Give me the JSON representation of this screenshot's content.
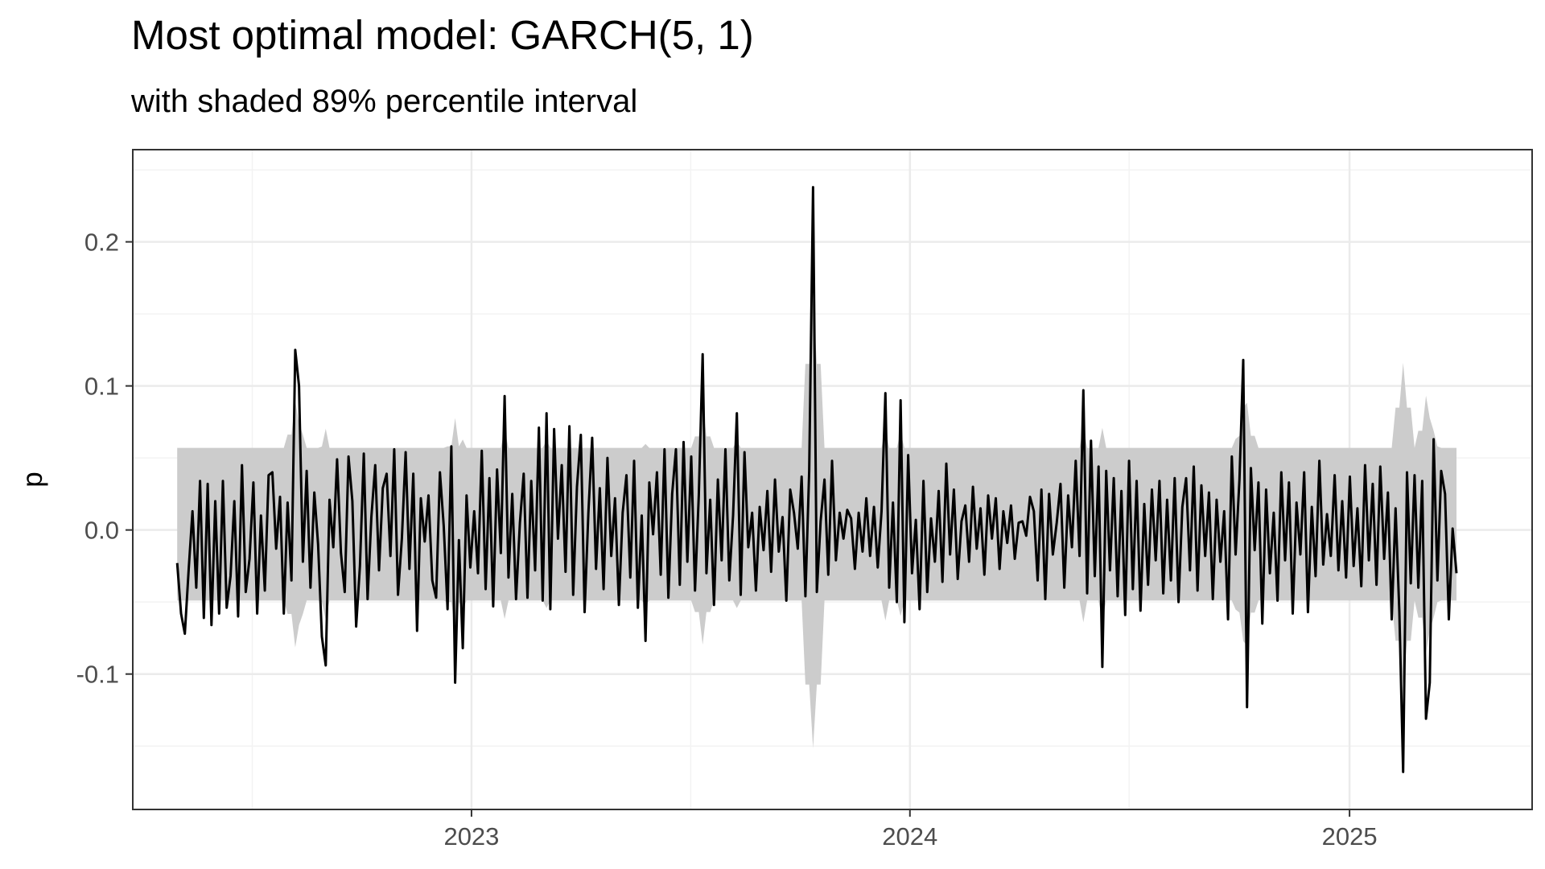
{
  "header": {
    "title": "Most optimal model: GARCH(5, 1)",
    "subtitle": "with shaded 89% percentile interval"
  },
  "colors": {
    "background": "#ffffff",
    "grid_major": "#ebebeb",
    "grid_minor": "#f3f3f3",
    "panel_border": "#333333",
    "ribbon": "#cccccc",
    "line": "#000000"
  },
  "chart_data": {
    "type": "line",
    "title": "Most optimal model: GARCH(5, 1)",
    "subtitle": "with shaded 89% percentile interval",
    "xlabel": "",
    "ylabel": "p",
    "x_type": "date",
    "x_range": [
      "2022-05-01",
      "2025-03-31"
    ],
    "xlim": [
      "2022-03-25",
      "2025-06-02"
    ],
    "ylim": [
      -0.194,
      0.264
    ],
    "x_ticks": [
      "2023",
      "2024",
      "2025"
    ],
    "y_ticks": [
      "-0.1",
      "0.0",
      "0.1",
      "0.2"
    ],
    "y_tick_values": [
      -0.1,
      0.0,
      0.1,
      0.2
    ],
    "grid": true,
    "legend": "none",
    "ribbon_description": "shaded 89% percentile interval",
    "series": [
      {
        "name": "",
        "values": [
          -0.023,
          -0.058,
          -0.072,
          -0.028,
          0.013,
          -0.04,
          0.034,
          -0.061,
          0.032,
          -0.066,
          0.02,
          -0.058,
          0.034,
          -0.054,
          -0.032,
          0.02,
          -0.06,
          0.045,
          -0.043,
          -0.02,
          0.033,
          -0.058,
          0.01,
          -0.042,
          0.038,
          0.04,
          -0.013,
          0.023,
          -0.058,
          0.019,
          -0.035,
          0.125,
          0.1,
          -0.022,
          0.041,
          -0.04,
          0.026,
          -0.01,
          -0.074,
          -0.094,
          0.021,
          -0.012,
          0.049,
          -0.016,
          -0.043,
          0.051,
          0.02,
          -0.067,
          -0.025,
          0.053,
          -0.048,
          0.009,
          0.045,
          -0.028,
          0.029,
          0.039,
          -0.018,
          0.056,
          -0.045,
          -0.006,
          0.054,
          -0.027,
          0.039,
          -0.07,
          0.022,
          -0.008,
          0.024,
          -0.035,
          -0.047,
          0.04,
          0.003,
          -0.055,
          0.058,
          -0.106,
          -0.007,
          -0.082,
          0.024,
          -0.026,
          0.013,
          -0.03,
          0.055,
          -0.041,
          0.036,
          -0.053,
          0.042,
          -0.016,
          0.093,
          -0.033,
          0.025,
          -0.048,
          0.005,
          0.039,
          -0.047,
          0.034,
          -0.028,
          0.071,
          -0.049,
          0.081,
          -0.055,
          0.07,
          -0.006,
          0.045,
          -0.029,
          0.072,
          -0.045,
          0.03,
          0.066,
          -0.057,
          0.012,
          0.064,
          -0.027,
          0.029,
          -0.041,
          0.05,
          -0.018,
          0.022,
          -0.052,
          0.012,
          0.038,
          -0.033,
          0.048,
          -0.054,
          0.01,
          -0.077,
          0.033,
          -0.003,
          0.04,
          -0.031,
          0.056,
          -0.047,
          0.025,
          0.056,
          -0.038,
          0.061,
          -0.022,
          0.051,
          -0.042,
          0.024,
          0.122,
          -0.03,
          0.021,
          -0.052,
          0.035,
          -0.021,
          0.056,
          -0.035,
          0.01,
          0.081,
          -0.045,
          0.054,
          -0.012,
          0.012,
          -0.042,
          0.016,
          -0.014,
          0.027,
          -0.029,
          0.035,
          -0.015,
          0.009,
          -0.049,
          0.028,
          0.012,
          -0.013,
          0.037,
          -0.046,
          0.041,
          0.238,
          -0.043,
          0.006,
          0.035,
          -0.031,
          0.048,
          -0.021,
          0.012,
          -0.006,
          0.014,
          0.008,
          -0.027,
          0.012,
          -0.015,
          0.022,
          -0.018,
          0.016,
          -0.026,
          0.013,
          0.095,
          -0.04,
          0.019,
          -0.05,
          0.09,
          -0.064,
          0.052,
          -0.03,
          0.007,
          -0.055,
          0.034,
          -0.043,
          0.008,
          -0.022,
          0.027,
          -0.036,
          0.046,
          -0.017,
          0.028,
          -0.034,
          0.006,
          0.017,
          -0.022,
          0.03,
          -0.013,
          0.015,
          -0.031,
          0.024,
          -0.006,
          0.022,
          -0.027,
          0.013,
          -0.009,
          0.017,
          -0.02,
          0.005,
          0.006,
          -0.004,
          0.023,
          0.013,
          -0.035,
          0.028,
          -0.048,
          0.025,
          -0.017,
          0.005,
          0.032,
          -0.04,
          0.024,
          -0.012,
          0.048,
          -0.018,
          0.097,
          -0.044,
          0.062,
          -0.032,
          0.044,
          -0.095,
          0.041,
          -0.028,
          0.036,
          -0.046,
          0.027,
          -0.059,
          0.048,
          -0.041,
          0.034,
          -0.056,
          0.018,
          -0.038,
          0.028,
          -0.021,
          0.034,
          -0.044,
          0.021,
          -0.035,
          0.036,
          -0.05,
          0.016,
          0.036,
          -0.028,
          0.044,
          -0.042,
          0.031,
          -0.018,
          0.026,
          -0.048,
          0.021,
          -0.022,
          0.013,
          -0.062,
          0.051,
          -0.017,
          0.035,
          0.118,
          -0.123,
          0.043,
          -0.014,
          0.033,
          -0.065,
          0.028,
          -0.03,
          0.012,
          -0.049,
          0.04,
          -0.021,
          0.033,
          -0.058,
          0.019,
          -0.017,
          0.04,
          -0.057,
          0.016,
          -0.032,
          0.048,
          -0.024,
          0.011,
          -0.018,
          0.038,
          -0.028,
          0.02,
          -0.033,
          0.037,
          -0.025,
          0.015,
          -0.039,
          0.045,
          -0.021,
          0.032,
          -0.038,
          0.044,
          -0.02,
          0.026,
          -0.062,
          0.015,
          -0.057,
          -0.168,
          0.04,
          -0.037,
          0.038,
          -0.04,
          0.034,
          -0.131,
          -0.106,
          0.063,
          -0.035,
          0.041,
          0.025,
          -0.062,
          0.001,
          -0.03
        ]
      }
    ]
  }
}
